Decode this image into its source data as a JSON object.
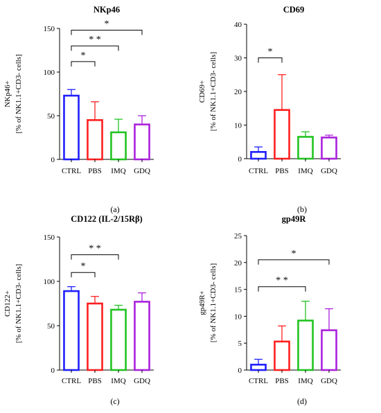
{
  "chart_data": [
    {
      "id": "a",
      "type": "bar",
      "title": "NKp46",
      "ylabel_line1": "NKp46+",
      "ylabel_line2": "[% of NK1.1+CD3- cells]",
      "caption": "(a)",
      "ylim": [
        0,
        150
      ],
      "yticks": [
        "0",
        "50",
        "100",
        "150"
      ],
      "categories": [
        "CTRL",
        "PBS",
        "IMQ",
        "GDQ"
      ],
      "values": [
        73,
        45,
        31,
        40
      ],
      "errors": [
        7,
        21,
        15,
        10
      ],
      "colors": [
        "#1f1fff",
        "#ff1f1f",
        "#22c322",
        "#aa22dd"
      ],
      "significance": [
        {
          "from": 0,
          "to": 1,
          "y": 112,
          "label": "*"
        },
        {
          "from": 0,
          "to": 2,
          "y": 130,
          "label": "* *"
        },
        {
          "from": 0,
          "to": 3,
          "y": 148,
          "label": "*"
        }
      ]
    },
    {
      "id": "b",
      "type": "bar",
      "title": "CD69",
      "ylabel_line1": "CD69+",
      "ylabel_line2": "[% of NK1.1+CD3- cells]",
      "caption": "(b)",
      "ylim": [
        0,
        40
      ],
      "yticks": [
        "0",
        "10",
        "20",
        "30",
        "40"
      ],
      "categories": [
        "CTRL",
        "PBS",
        "IMQ",
        "GDQ"
      ],
      "values": [
        2,
        14.5,
        6.5,
        6.3
      ],
      "errors": [
        1.5,
        10.5,
        1.5,
        0.7
      ],
      "colors": [
        "#1f1fff",
        "#ff1f1f",
        "#22c322",
        "#aa22dd"
      ],
      "significance": [
        {
          "from": 0,
          "to": 1,
          "y": 30,
          "label": "*"
        }
      ]
    },
    {
      "id": "c",
      "type": "bar",
      "title": "CD122 (IL-2/15Rβ)",
      "ylabel_line1": "CD122+",
      "ylabel_line2": "[% of NK1.1+CD3- cells]",
      "caption": "(c)",
      "ylim": [
        0,
        150
      ],
      "yticks": [
        "0",
        "50",
        "100",
        "150"
      ],
      "categories": [
        "CTRL",
        "PBS",
        "IMQ",
        "GDQ"
      ],
      "values": [
        89,
        75,
        68,
        77
      ],
      "errors": [
        5,
        8,
        5,
        10
      ],
      "colors": [
        "#1f1fff",
        "#ff1f1f",
        "#22c322",
        "#aa22dd"
      ],
      "significance": [
        {
          "from": 0,
          "to": 1,
          "y": 110,
          "label": "*"
        },
        {
          "from": 0,
          "to": 2,
          "y": 130,
          "label": "* *"
        }
      ]
    },
    {
      "id": "d",
      "type": "bar",
      "title": "gp49R",
      "ylabel_line1": "gp49R+",
      "ylabel_line2": "[% of NK1.1+CD3- cells]",
      "caption": "(d)",
      "ylim": [
        0,
        25
      ],
      "yticks": [
        "0",
        "5",
        "10",
        "15",
        "20",
        "25"
      ],
      "categories": [
        "CTRL",
        "PBS",
        "IMQ",
        "GDQ"
      ],
      "values": [
        1,
        5.3,
        9.2,
        7.4
      ],
      "errors": [
        1,
        2.9,
        3.6,
        4
      ],
      "colors": [
        "#1f1fff",
        "#ff1f1f",
        "#22c322",
        "#aa22dd"
      ],
      "significance": [
        {
          "from": 0,
          "to": 2,
          "y": 15.5,
          "label": "* *"
        },
        {
          "from": 0,
          "to": 3,
          "y": 20.5,
          "label": "*"
        }
      ]
    }
  ]
}
